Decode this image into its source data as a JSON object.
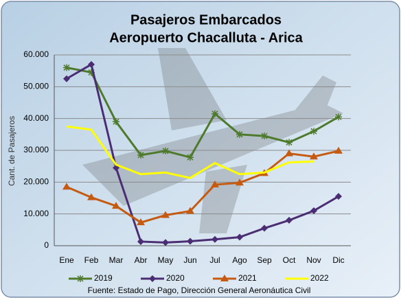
{
  "chart_data": {
    "type": "line",
    "title": "Pasajeros Embarcados",
    "subtitle": "Aeropuerto Chacalluta - Arica",
    "y_label": "Cant. de Pasajeros",
    "source": "Fuente: Estado de Pago, Dirección General Aeronáutica Civil",
    "categories": [
      "Ene",
      "Feb",
      "Mar",
      "Abr",
      "May",
      "Jun",
      "Jul",
      "Ago",
      "Sep",
      "Oct",
      "Nov",
      "Dic"
    ],
    "series": [
      {
        "name": "2019",
        "color": "#4e7a2c",
        "marker": "star",
        "values": [
          56000,
          54500,
          39000,
          28500,
          29800,
          27800,
          41500,
          35000,
          34500,
          32500,
          36000,
          40500
        ]
      },
      {
        "name": "2020",
        "color": "#4b2d73",
        "marker": "diamond",
        "values": [
          52500,
          57000,
          24500,
          1300,
          1000,
          1400,
          2000,
          2700,
          5500,
          8000,
          11000,
          15500
        ]
      },
      {
        "name": "2021",
        "color": "#c55a11",
        "marker": "triangle",
        "values": [
          18500,
          15200,
          12500,
          7300,
          9600,
          10900,
          19200,
          19800,
          22800,
          29000,
          28000,
          29800
        ]
      },
      {
        "name": "2022",
        "color": "#ffff00",
        "marker": "none",
        "values": [
          37500,
          36500,
          25500,
          22500,
          23000,
          21300,
          26000,
          22500,
          23000,
          26200,
          26500,
          null
        ]
      }
    ],
    "ylim": [
      0,
      60000
    ],
    "yticks": [
      0,
      {
        "value": 10000,
        "label": "10.000"
      },
      {
        "value": 20000,
        "label": "20.000"
      },
      {
        "value": 30000,
        "label": "30.000"
      },
      {
        "value": 40000,
        "label": "40.000"
      },
      {
        "value": 50000,
        "label": "50.000"
      },
      {
        "value": 60000,
        "label": "60.000"
      }
    ],
    "grid": true
  }
}
